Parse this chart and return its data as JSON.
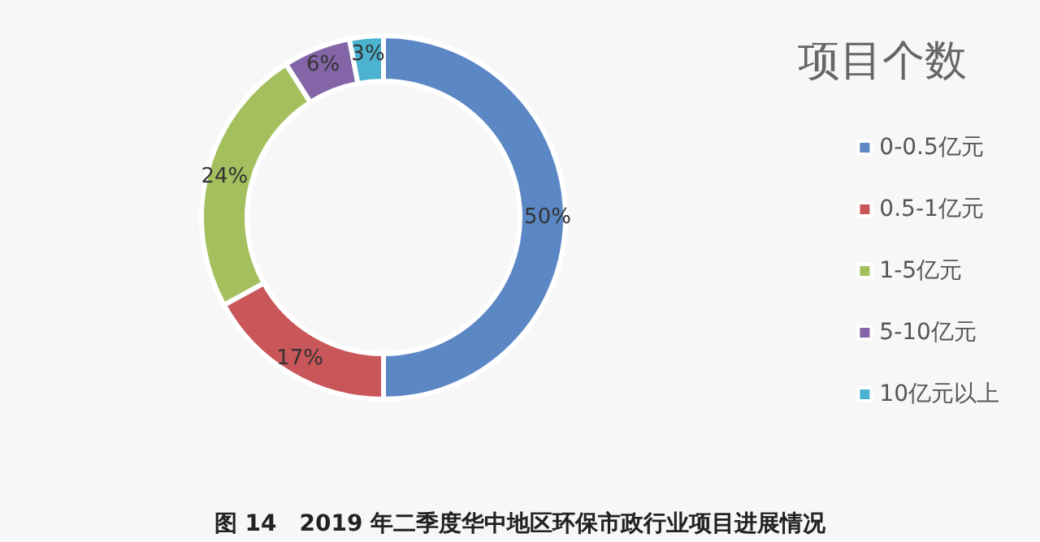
{
  "chart_data": {
    "type": "donut",
    "title": "项目个数",
    "categories": [
      "0-0.5亿元",
      "0.5-1亿元",
      "1-5亿元",
      "5-10亿元",
      "10亿元以上"
    ],
    "values": [
      50,
      17,
      24,
      6,
      3
    ],
    "value_labels": [
      "50%",
      "17%",
      "24%",
      "6%",
      "3%"
    ],
    "colors": [
      "#5b87c5",
      "#c9575a",
      "#a4c05e",
      "#8466a8",
      "#4bb3cf"
    ],
    "legend": "right",
    "annotations": [
      "图 14　2019 年二季度华中地区环保市政行业项目进展情况"
    ]
  }
}
